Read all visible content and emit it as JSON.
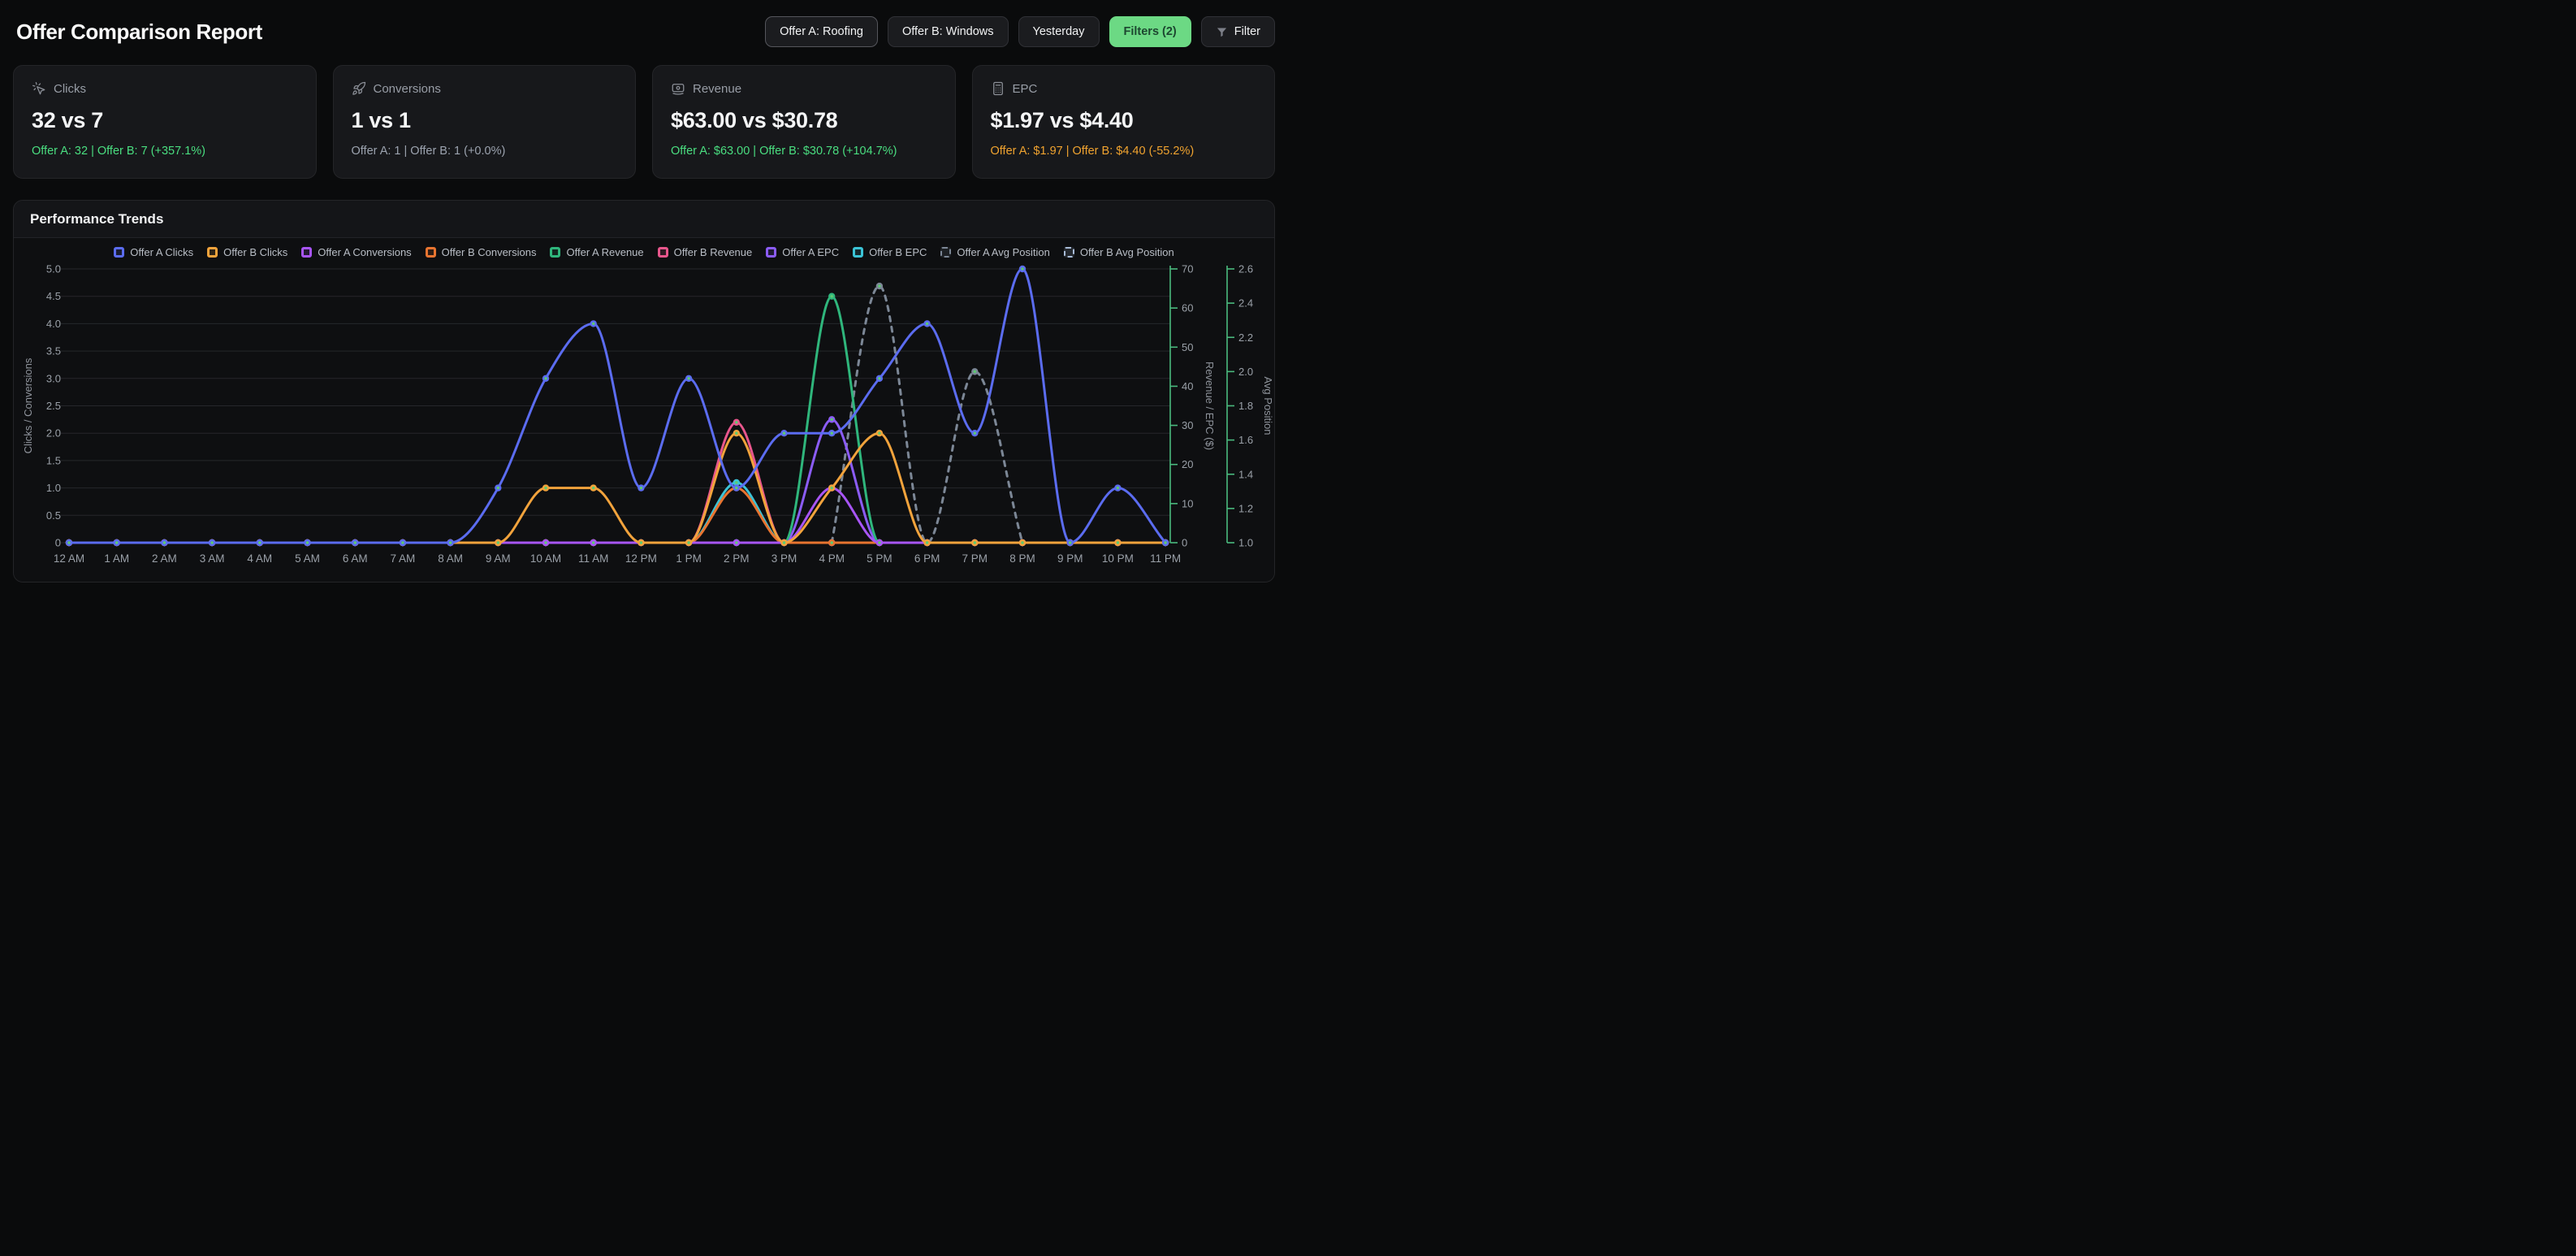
{
  "header": {
    "title": "Offer Comparison Report",
    "buttons": [
      {
        "label": "Offer A: Roofing",
        "variant": "strong"
      },
      {
        "label": "Offer B: Windows",
        "variant": "outline"
      },
      {
        "label": "Yesterday",
        "variant": "outline"
      },
      {
        "label": "Filters (2)",
        "variant": "primary"
      },
      {
        "label": "Filter",
        "variant": "outline",
        "icon": "filter-funnel-icon"
      }
    ]
  },
  "cards": [
    {
      "label": "Clicks",
      "icon": "cursor-click-icon",
      "value": "32 vs 7",
      "sub": "Offer A: 32 | Offer B: 7 (+357.1%)",
      "sub_color": "green"
    },
    {
      "label": "Conversions",
      "icon": "rocket-icon",
      "value": "1 vs 1",
      "sub": "Offer A: 1 | Offer B: 1 (+0.0%)",
      "sub_color": "gray"
    },
    {
      "label": "Revenue",
      "icon": "banknote-icon",
      "value": "$63.00 vs $30.78",
      "sub": "Offer A: $63.00 | Offer B: $30.78 (+104.7%)",
      "sub_color": "green"
    },
    {
      "label": "EPC",
      "icon": "calculator-icon",
      "value": "$1.97 vs $4.40",
      "sub": "Offer A: $1.97 | Offer B: $4.40 (-55.2%)",
      "sub_color": "amber"
    }
  ],
  "colors": {
    "accent_green": "#4ade80",
    "button_green": "#6cd984",
    "amber": "#f0a32f",
    "right_axis_green": "#4aba7e",
    "grid": "#26272b",
    "tick_text": "#9aa0a8",
    "dot_center": "#5ecb72"
  },
  "chart": {
    "title": "Performance Trends",
    "left_axis": {
      "label": "Clicks / Conversions",
      "min": 0,
      "max": 5,
      "ticks": [
        "0",
        "0.5",
        "1.0",
        "1.5",
        "2.0",
        "2.5",
        "3.0",
        "3.5",
        "4.0",
        "4.5",
        "5.0"
      ]
    },
    "right_axis_1": {
      "label": "Revenue / EPC ($)",
      "min": 0,
      "max": 70,
      "ticks": [
        "0",
        "10",
        "20",
        "30",
        "40",
        "50",
        "60",
        "70"
      ]
    },
    "right_axis_2": {
      "label": "Avg Position",
      "min": 1.0,
      "max": 2.6,
      "ticks": [
        "1.0",
        "1.2",
        "1.4",
        "1.6",
        "1.8",
        "2.0",
        "2.2",
        "2.4",
        "2.6"
      ]
    },
    "chart_data": {
      "type": "line",
      "x": [
        "12 AM",
        "1 AM",
        "2 AM",
        "3 AM",
        "4 AM",
        "5 AM",
        "6 AM",
        "7 AM",
        "8 AM",
        "9 AM",
        "10 AM",
        "11 AM",
        "12 PM",
        "1 PM",
        "2 PM",
        "3 PM",
        "4 PM",
        "5 PM",
        "6 PM",
        "7 PM",
        "8 PM",
        "9 PM",
        "10 PM",
        "11 PM"
      ],
      "grid": true,
      "legend_position": "top",
      "series": [
        {
          "name": "Offer A Clicks",
          "color": "#5b6cf0",
          "axis": "left",
          "dash": false,
          "values": [
            0,
            0,
            0,
            0,
            0,
            0,
            0,
            0,
            0,
            1,
            3,
            4,
            1,
            3,
            1,
            2,
            2,
            3,
            4,
            2,
            5,
            0,
            1,
            0
          ]
        },
        {
          "name": "Offer B Clicks",
          "color": "#f2a33c",
          "axis": "left",
          "dash": false,
          "values": [
            0,
            0,
            0,
            0,
            0,
            0,
            0,
            0,
            0,
            0,
            1,
            1,
            0,
            0,
            2,
            0,
            1,
            2,
            0,
            0,
            0,
            0,
            0,
            0
          ]
        },
        {
          "name": "Offer A Conversions",
          "color": "#a855f7",
          "axis": "left",
          "dash": false,
          "values": [
            0,
            0,
            0,
            0,
            0,
            0,
            0,
            0,
            0,
            0,
            0,
            0,
            0,
            0,
            0,
            0,
            1,
            0,
            0,
            0,
            0,
            0,
            0,
            0
          ]
        },
        {
          "name": "Offer B Conversions",
          "color": "#e87430",
          "axis": "left",
          "dash": false,
          "values": [
            0,
            0,
            0,
            0,
            0,
            0,
            0,
            0,
            0,
            0,
            0,
            0,
            0,
            0,
            1,
            0,
            0,
            0,
            0,
            0,
            0,
            0,
            0,
            0
          ]
        },
        {
          "name": "Offer A Revenue",
          "color": "#2fb67c",
          "axis": "right1",
          "dash": false,
          "values": [
            0,
            0,
            0,
            0,
            0,
            0,
            0,
            0,
            0,
            0,
            0,
            0,
            0,
            0,
            0,
            0,
            63,
            0,
            0,
            0,
            0,
            0,
            0,
            0
          ]
        },
        {
          "name": "Offer B Revenue",
          "color": "#e8568c",
          "axis": "right1",
          "dash": false,
          "values": [
            0,
            0,
            0,
            0,
            0,
            0,
            0,
            0,
            0,
            0,
            0,
            0,
            0,
            0,
            30.78,
            0,
            0,
            0,
            0,
            0,
            0,
            0,
            0,
            0
          ]
        },
        {
          "name": "Offer A EPC",
          "color": "#8b5cf6",
          "axis": "right1",
          "dash": false,
          "values": [
            0,
            0,
            0,
            0,
            0,
            0,
            0,
            0,
            0,
            0,
            0,
            0,
            0,
            0,
            0,
            0,
            31.5,
            0,
            0,
            0,
            0,
            0,
            0,
            0
          ]
        },
        {
          "name": "Offer B EPC",
          "color": "#3bc3d6",
          "axis": "right1",
          "dash": false,
          "values": [
            0,
            0,
            0,
            0,
            0,
            0,
            0,
            0,
            0,
            0,
            0,
            0,
            0,
            0,
            15.39,
            0,
            0,
            0,
            0,
            0,
            0,
            0,
            0,
            0
          ]
        },
        {
          "name": "Offer A Avg Position",
          "color": "#7c8796",
          "axis": "right2",
          "dash": true,
          "values": [
            null,
            null,
            null,
            null,
            null,
            null,
            null,
            null,
            null,
            null,
            null,
            null,
            null,
            null,
            null,
            null,
            1.0,
            2.5,
            1.0,
            2.0,
            1.0,
            null,
            null,
            null
          ]
        },
        {
          "name": "Offer B Avg Position",
          "color": "#a9bcd8",
          "axis": "right2",
          "dash": true,
          "values": [
            null,
            null,
            null,
            null,
            null,
            null,
            null,
            null,
            null,
            null,
            1.0,
            1.0,
            null,
            null,
            1.0,
            null,
            1.0,
            1.0,
            null,
            null,
            null,
            null,
            null,
            null
          ]
        }
      ]
    }
  }
}
